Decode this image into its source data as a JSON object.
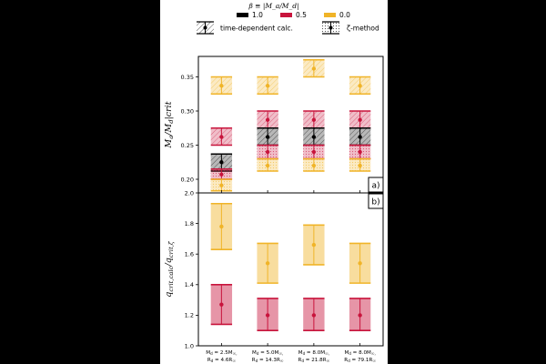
{
  "chart_data": {
    "type": "errorbar",
    "legend": {
      "title": "β ≡ |M_a/M_d|",
      "placement": "top",
      "series_entries": [
        {
          "name": "1.0",
          "color": "#000000"
        },
        {
          "name": "0.5",
          "color": "#C8143C"
        },
        {
          "name": "0.0",
          "color": "#F0B428"
        }
      ],
      "method_entries": [
        {
          "name": "time-dependent calc.",
          "pattern": "hatch"
        },
        {
          "name": "ζ-method",
          "pattern": "dots"
        }
      ]
    },
    "categories": [
      {
        "line1": "M_d = 2.5M_☉,",
        "line2": "R_d = 4.6R_☉"
      },
      {
        "line1": "M_d = 5.0M_☉,",
        "line2": "R_d = 14.3R_☉"
      },
      {
        "line1": "M_d = 8.0M_☉,",
        "line2": "R_d = 21.8R_☉"
      },
      {
        "line1": "M_d = 8.0M_☉,",
        "line2": "R_d = 79.1R_☉"
      }
    ],
    "panels": [
      {
        "label": "a)",
        "ylabel": "M_a/M_d|crit",
        "ylim": [
          0.18,
          0.38
        ],
        "yticks": [
          0.2,
          0.25,
          0.3,
          0.35
        ],
        "ytick_labels": [
          "0.20",
          "0.25",
          "0.30",
          "0.35"
        ],
        "series": [
          {
            "name": "0.0",
            "color": "#F0B428",
            "method": "time-dependent calc.",
            "points": [
              {
                "x": 0,
                "y": 0.337,
                "lo": 0.325,
                "hi": 0.35
              },
              {
                "x": 1,
                "y": 0.337,
                "lo": 0.325,
                "hi": 0.35
              },
              {
                "x": 2,
                "y": 0.362,
                "lo": 0.35,
                "hi": 0.375
              },
              {
                "x": 3,
                "y": 0.337,
                "lo": 0.325,
                "hi": 0.35
              }
            ]
          },
          {
            "name": "0.5",
            "color": "#C8143C",
            "method": "time-dependent calc.",
            "points": [
              {
                "x": 0,
                "y": 0.262,
                "lo": 0.25,
                "hi": 0.275
              },
              {
                "x": 1,
                "y": 0.287,
                "lo": 0.275,
                "hi": 0.3
              },
              {
                "x": 2,
                "y": 0.287,
                "lo": 0.275,
                "hi": 0.3
              },
              {
                "x": 3,
                "y": 0.287,
                "lo": 0.275,
                "hi": 0.3
              }
            ]
          },
          {
            "name": "1.0",
            "color": "#000000",
            "method": "time-dependent calc.",
            "points": [
              {
                "x": 0,
                "y": 0.225,
                "lo": 0.212,
                "hi": 0.237
              },
              {
                "x": 1,
                "y": 0.262,
                "lo": 0.25,
                "hi": 0.275
              },
              {
                "x": 2,
                "y": 0.262,
                "lo": 0.25,
                "hi": 0.275
              },
              {
                "x": 3,
                "y": 0.262,
                "lo": 0.25,
                "hi": 0.275
              }
            ]
          },
          {
            "name": "0.5",
            "color": "#C8143C",
            "method": "ζ-method",
            "points": [
              {
                "x": 0,
                "y": 0.207,
                "lo": 0.2,
                "hi": 0.215
              },
              {
                "x": 1,
                "y": 0.24,
                "lo": 0.23,
                "hi": 0.25
              },
              {
                "x": 2,
                "y": 0.24,
                "lo": 0.23,
                "hi": 0.25
              },
              {
                "x": 3,
                "y": 0.24,
                "lo": 0.23,
                "hi": 0.25
              }
            ]
          },
          {
            "name": "0.0",
            "color": "#F0B428",
            "method": "ζ-method",
            "points": [
              {
                "x": 0,
                "y": 0.191,
                "lo": 0.183,
                "hi": 0.2
              },
              {
                "x": 1,
                "y": 0.22,
                "lo": 0.212,
                "hi": 0.23
              },
              {
                "x": 2,
                "y": 0.22,
                "lo": 0.212,
                "hi": 0.23
              },
              {
                "x": 3,
                "y": 0.22,
                "lo": 0.212,
                "hi": 0.23
              }
            ]
          }
        ]
      },
      {
        "label": "b)",
        "ylabel": "q_crit,calc/q_crit,ζ",
        "ylim": [
          1.0,
          2.0
        ],
        "yticks": [
          1.0,
          1.2,
          1.4,
          1.6,
          1.8,
          2.0
        ],
        "ytick_labels": [
          "1.0",
          "1.2",
          "1.4",
          "1.6",
          "1.8",
          "2.0"
        ],
        "series": [
          {
            "name": "0.0",
            "color": "#F0B428",
            "points": [
              {
                "x": 0,
                "y": 1.78,
                "lo": 1.63,
                "hi": 1.93
              },
              {
                "x": 1,
                "y": 1.54,
                "lo": 1.41,
                "hi": 1.67
              },
              {
                "x": 2,
                "y": 1.66,
                "lo": 1.53,
                "hi": 1.79
              },
              {
                "x": 3,
                "y": 1.54,
                "lo": 1.41,
                "hi": 1.67
              }
            ]
          },
          {
            "name": "0.5",
            "color": "#C8143C",
            "points": [
              {
                "x": 0,
                "y": 1.27,
                "lo": 1.14,
                "hi": 1.4
              },
              {
                "x": 1,
                "y": 1.2,
                "lo": 1.1,
                "hi": 1.31
              },
              {
                "x": 2,
                "y": 1.2,
                "lo": 1.1,
                "hi": 1.31
              },
              {
                "x": 3,
                "y": 1.2,
                "lo": 1.1,
                "hi": 1.31
              }
            ]
          }
        ]
      }
    ]
  }
}
